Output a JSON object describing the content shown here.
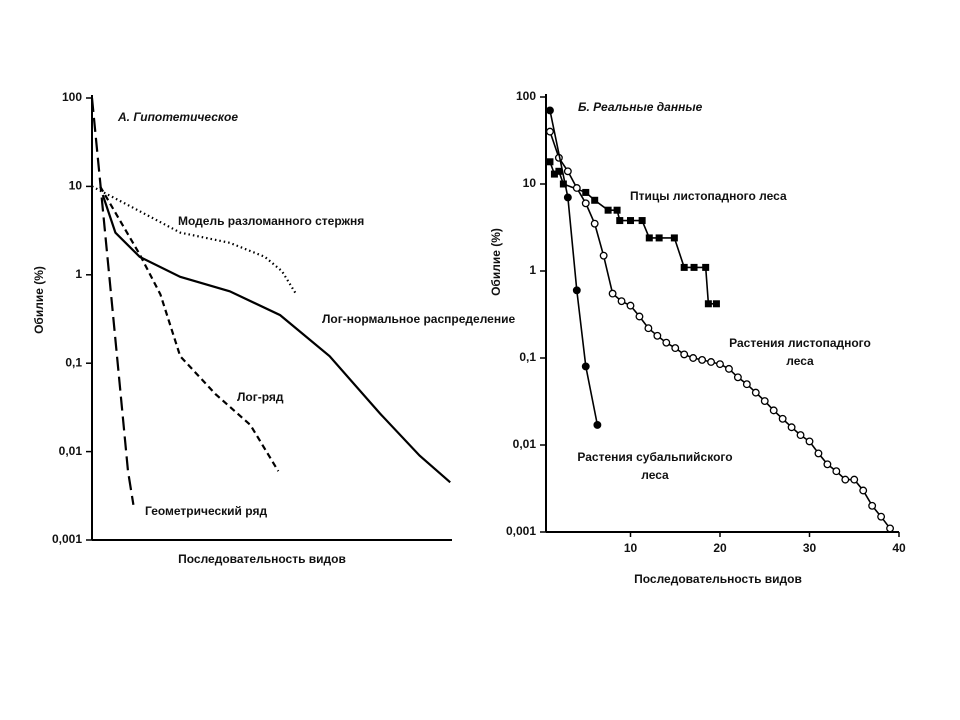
{
  "chart_data": [
    {
      "type": "line",
      "title": "А. Гипотетическое",
      "xlabel": "Последовательность видов",
      "ylabel": "Обилие (%)",
      "log_y": true,
      "xlim": [
        0,
        40
      ],
      "ylim": [
        0.001,
        100
      ],
      "yticks": [
        {
          "value": 0.001,
          "label": "0,001"
        },
        {
          "value": 0.01,
          "label": "0,01"
        },
        {
          "value": 0.1,
          "label": "0,1"
        },
        1,
        10,
        100
      ],
      "series": [
        {
          "name": "Модель разломанного стержня",
          "color": "#000000",
          "style": "dotted",
          "x": [
            0,
            4.2,
            9.8,
            15.3,
            19.2,
            21.1,
            22.7
          ],
          "values": [
            10,
            6,
            3,
            2.3,
            1.6,
            1.1,
            0.6
          ]
        },
        {
          "name": "Лог-нормальное распределение",
          "color": "#000000",
          "style": "solid",
          "x": [
            1.2,
            2.6,
            5.3,
            9.8,
            15.3,
            20.9,
            26.4,
            32,
            36.4,
            39.8
          ],
          "values": [
            8,
            3,
            1.6,
            0.95,
            0.65,
            0.35,
            0.12,
            0.027,
            0.009,
            0.0045
          ]
        },
        {
          "name": "Лог-ряд",
          "color": "#000000",
          "style": "dashed",
          "x": [
            0.9,
            5.3,
            7.6,
            9.8,
            13.7,
            17.6,
            20.7
          ],
          "values": [
            10,
            1.7,
            0.6,
            0.12,
            0.045,
            0.02,
            0.006
          ]
        },
        {
          "name": "Геометрический ряд",
          "color": "#000000",
          "style": "long-dashed",
          "x": [
            0,
            1,
            2,
            3,
            4,
            4.6
          ],
          "values": [
            100,
            9,
            0.8,
            0.07,
            0.006,
            0.0025
          ]
        }
      ]
    },
    {
      "type": "line",
      "title": "Б. Реальные данные",
      "xlabel": "Последовательность видов",
      "ylabel": "Обилие (%)",
      "log_y": true,
      "xlim": [
        0,
        40
      ],
      "xticks": [
        10,
        20,
        30,
        40
      ],
      "ylim": [
        0.001,
        100
      ],
      "yticks": [
        {
          "value": 0.001,
          "label": "0,001"
        },
        {
          "value": 0.01,
          "label": "0,01"
        },
        {
          "value": 0.1,
          "label": "0,1"
        },
        1,
        10,
        100
      ],
      "series": [
        {
          "name": "Птицы листопадного леса",
          "color": "#000000",
          "style": "solid",
          "marker": "square",
          "x": [
            1,
            1.5,
            2,
            2.5,
            5,
            6,
            7.5,
            8.5,
            8.8,
            10,
            11.3,
            12.1,
            13.2,
            14.9,
            16,
            17.1,
            18.4,
            18.7,
            19.6
          ],
          "values": [
            18,
            13,
            14,
            10,
            8,
            6.5,
            5,
            5,
            3.8,
            3.8,
            3.8,
            2.4,
            2.4,
            2.4,
            1.1,
            1.1,
            1.1,
            0.42,
            0.42
          ]
        },
        {
          "name": "Растения листопадного\nлеса",
          "color": "#000000",
          "style": "solid",
          "marker": "circle-open",
          "x": [
            1,
            2,
            3,
            4,
            5,
            6,
            7,
            8,
            9,
            10,
            11,
            12,
            13,
            14,
            15,
            16,
            17,
            18,
            19,
            20,
            21,
            22,
            23,
            24,
            25,
            26,
            27,
            28,
            29,
            30,
            31,
            32,
            33,
            34,
            35,
            36,
            37,
            38,
            39
          ],
          "values": [
            40,
            20,
            14,
            9,
            6,
            3.5,
            1.5,
            0.55,
            0.45,
            0.4,
            0.3,
            0.22,
            0.18,
            0.15,
            0.13,
            0.11,
            0.1,
            0.095,
            0.09,
            0.085,
            0.075,
            0.06,
            0.05,
            0.04,
            0.032,
            0.025,
            0.02,
            0.016,
            0.013,
            0.011,
            0.008,
            0.006,
            0.005,
            0.004,
            0.004,
            0.003,
            0.002,
            0.0015,
            0.0011
          ]
        },
        {
          "name": "Растения субальпийского\nлеса",
          "color": "#000000",
          "style": "solid",
          "marker": "circle-filled",
          "x": [
            1,
            3,
            4,
            5,
            6.3
          ],
          "values": [
            70,
            7,
            0.6,
            0.08,
            0.017
          ]
        }
      ]
    }
  ]
}
